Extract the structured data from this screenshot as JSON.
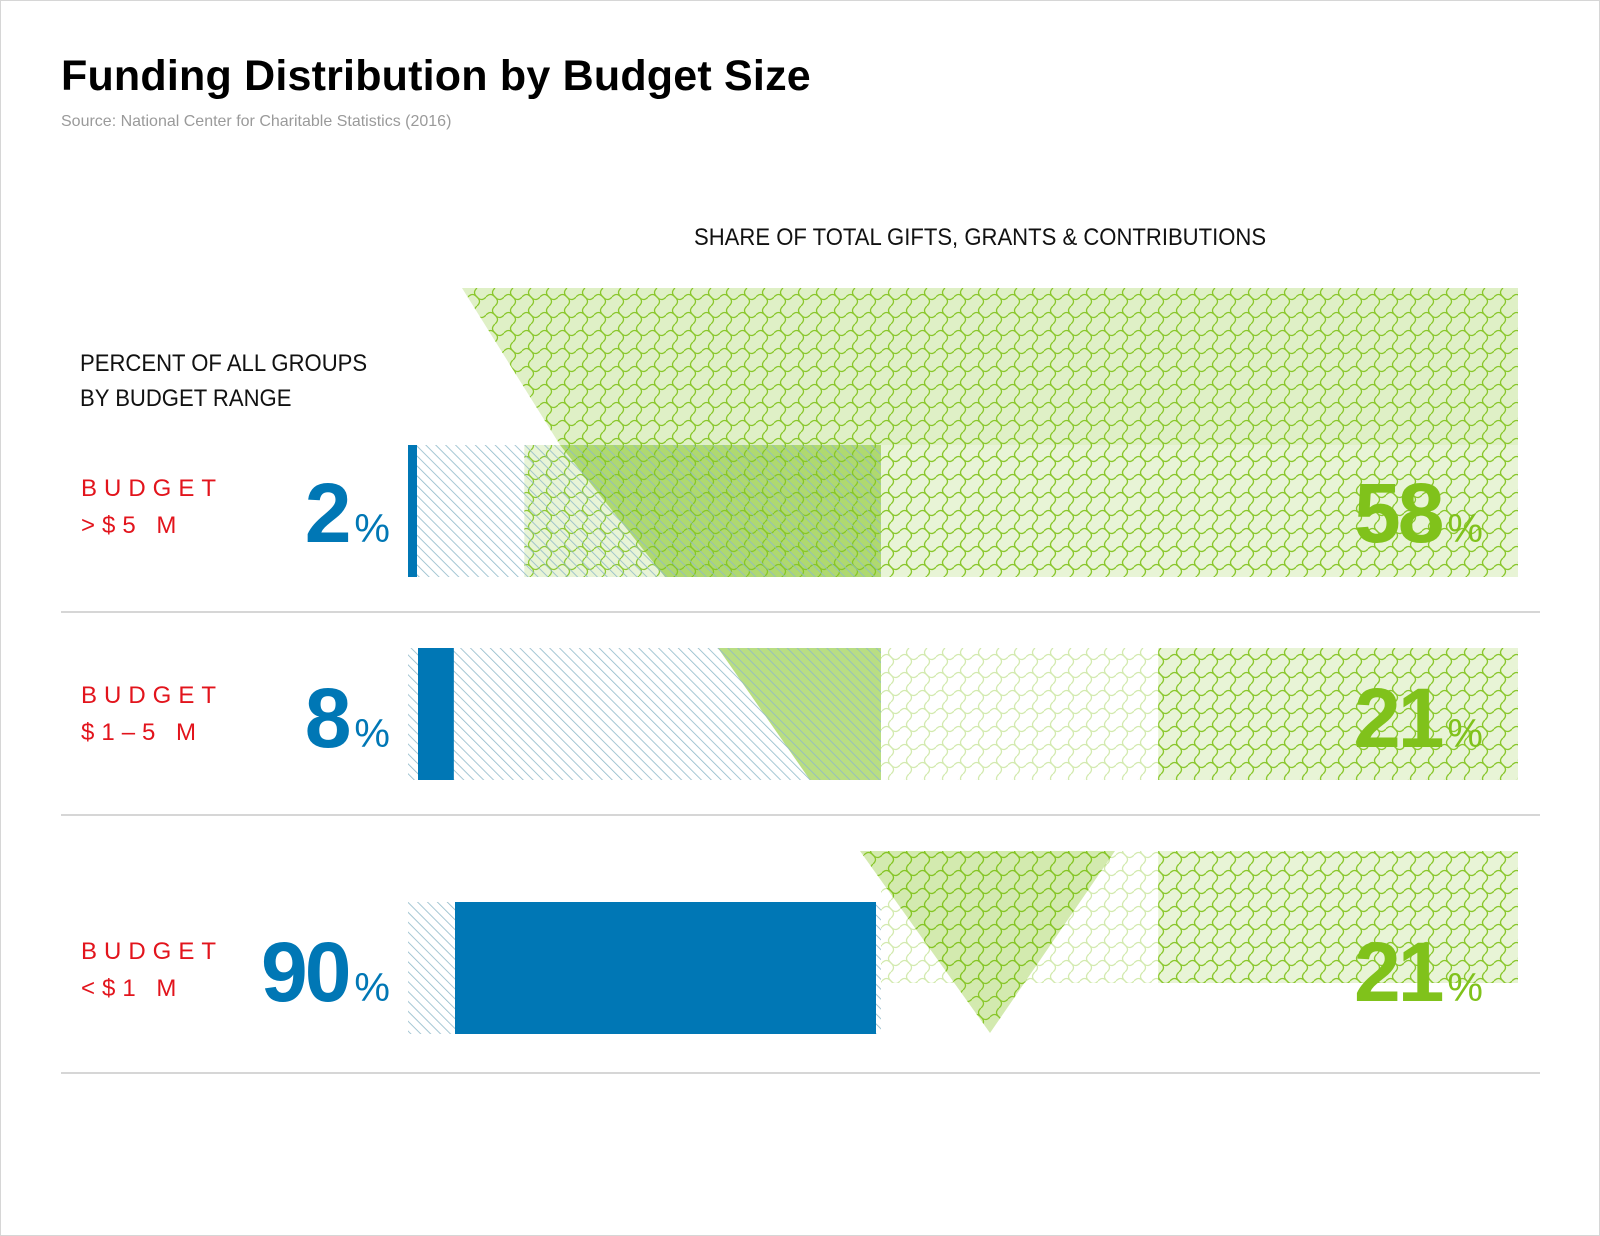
{
  "title": "Funding Distribution by Budget Size",
  "source": "Source: National Center for Charitable Statistics (2016)",
  "share_heading": "SHARE OF TOTAL GIFTS, GRANTS & CONTRIBUTIONS",
  "groups_heading": [
    "PERCENT OF ALL GROUPS",
    "BY BUDGET RANGE"
  ],
  "percent_sign": "%",
  "colors": {
    "blue": "#0077b5",
    "green": "#80c21b",
    "red": "#e2141c",
    "hatch": "#8fb9c9"
  },
  "chart_data": {
    "type": "bar",
    "categories": [
      "BUDGET >$5 M",
      "BUDGET $1–5 M",
      "BUDGET <$1 M"
    ],
    "series": [
      {
        "name": "PERCENT OF ALL GROUPS BY BUDGET RANGE",
        "values": [
          2,
          8,
          90
        ]
      },
      {
        "name": "SHARE OF TOTAL GIFTS, GRANTS & CONTRIBUTIONS",
        "values": [
          58,
          21,
          21
        ]
      }
    ],
    "xlim": [
      0,
      100
    ]
  },
  "rows": [
    {
      "label_line1": "BUDGET",
      "label_line2": ">$5 M",
      "groups_pct": "2",
      "share_pct": "58"
    },
    {
      "label_line1": "BUDGET",
      "label_line2": "$1–5 M",
      "groups_pct": "8",
      "share_pct": "21"
    },
    {
      "label_line1": "BUDGET",
      "label_line2": "<$1 M",
      "groups_pct": "90",
      "share_pct": "21"
    }
  ]
}
